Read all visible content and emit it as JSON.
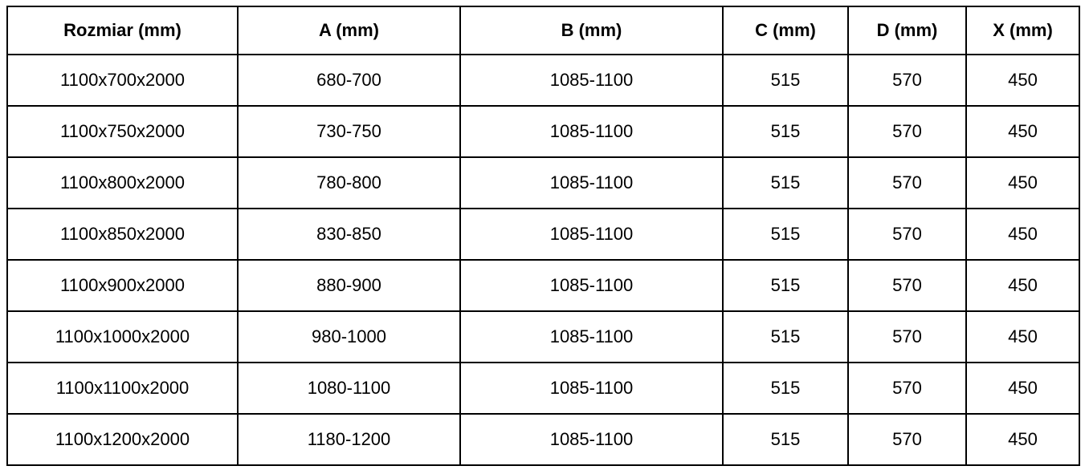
{
  "table": {
    "columns": [
      {
        "key": "rozmiar",
        "label": "Rozmiar (mm)"
      },
      {
        "key": "a",
        "label": "A (mm)"
      },
      {
        "key": "b",
        "label": "B (mm)"
      },
      {
        "key": "c",
        "label": "C (mm)"
      },
      {
        "key": "d",
        "label": "D (mm)"
      },
      {
        "key": "x",
        "label": "X (mm)"
      }
    ],
    "rows": [
      [
        "1100x700x2000",
        "680-700",
        "1085-1100",
        "515",
        "570",
        "450"
      ],
      [
        "1100x750x2000",
        "730-750",
        "1085-1100",
        "515",
        "570",
        "450"
      ],
      [
        "1100x800x2000",
        "780-800",
        "1085-1100",
        "515",
        "570",
        "450"
      ],
      [
        "1100x850x2000",
        "830-850",
        "1085-1100",
        "515",
        "570",
        "450"
      ],
      [
        "1100x900x2000",
        "880-900",
        "1085-1100",
        "515",
        "570",
        "450"
      ],
      [
        "1100x1000x2000",
        "980-1000",
        "1085-1100",
        "515",
        "570",
        "450"
      ],
      [
        "1100x1100x2000",
        "1080-1100",
        "1085-1100",
        "515",
        "570",
        "450"
      ],
      [
        "1100x1200x2000",
        "1180-1200",
        "1085-1100",
        "515",
        "570",
        "450"
      ]
    ]
  },
  "colors": {
    "border": "#000000",
    "text": "#000000",
    "background": "#ffffff"
  }
}
